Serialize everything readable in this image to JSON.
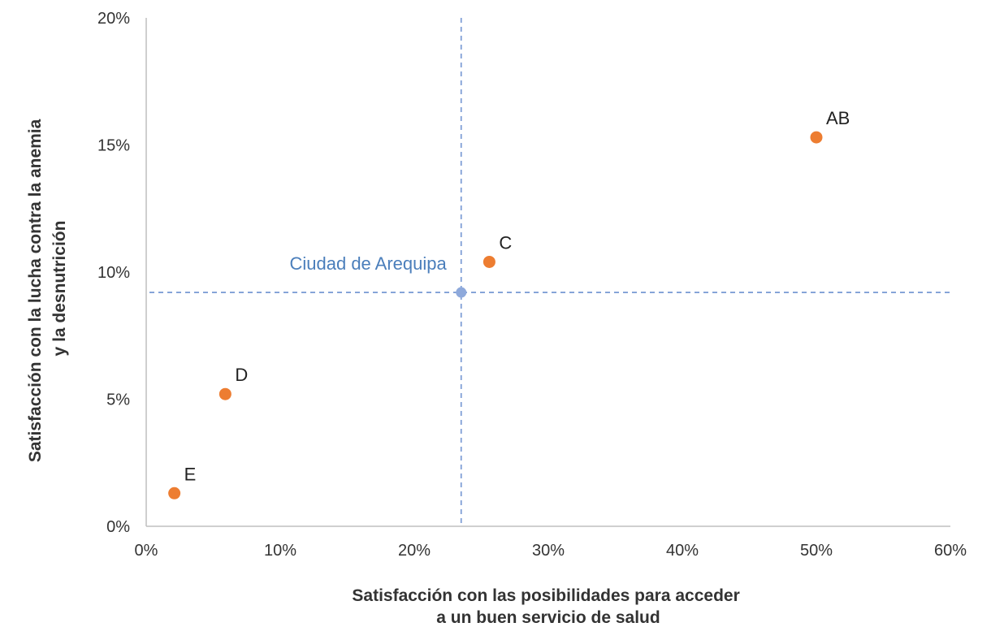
{
  "chart_data": {
    "type": "scatter",
    "title": "",
    "xlabel_lines": [
      "Satisfacción con las posibilidades para acceder",
      "a un buen servicio de salud"
    ],
    "ylabel_lines": [
      "Satisfacción con la lucha contra la anemia",
      "y la desnutrición"
    ],
    "xlim": [
      0,
      60
    ],
    "ylim": [
      0,
      20
    ],
    "x_ticks": [
      {
        "value": 0,
        "label": "0%"
      },
      {
        "value": 10,
        "label": "10%"
      },
      {
        "value": 20,
        "label": "20%"
      },
      {
        "value": 30,
        "label": "30%"
      },
      {
        "value": 40,
        "label": "40%"
      },
      {
        "value": 50,
        "label": "50%"
      },
      {
        "value": 60,
        "label": "60%"
      }
    ],
    "y_ticks": [
      {
        "value": 0,
        "label": "0%"
      },
      {
        "value": 5,
        "label": "5%"
      },
      {
        "value": 10,
        "label": "10%"
      },
      {
        "value": 15,
        "label": "15%"
      },
      {
        "value": 20,
        "label": "20%"
      }
    ],
    "grid": false,
    "points": [
      {
        "label": "AB",
        "x": 50.0,
        "y": 15.3
      },
      {
        "label": "C",
        "x": 25.6,
        "y": 10.4
      },
      {
        "label": "D",
        "x": 5.9,
        "y": 5.2
      },
      {
        "label": "E",
        "x": 2.1,
        "y": 1.3
      }
    ],
    "point_color": "#ED7D31",
    "reference": {
      "label": "Ciudad de Arequipa",
      "x": 23.5,
      "y": 9.2
    },
    "reference_color": "#4A7EBB",
    "reference_marker_color": "#8EA9DB",
    "reference_line_color": "#7F9FD6",
    "axis_color": "#BFBFBF"
  }
}
